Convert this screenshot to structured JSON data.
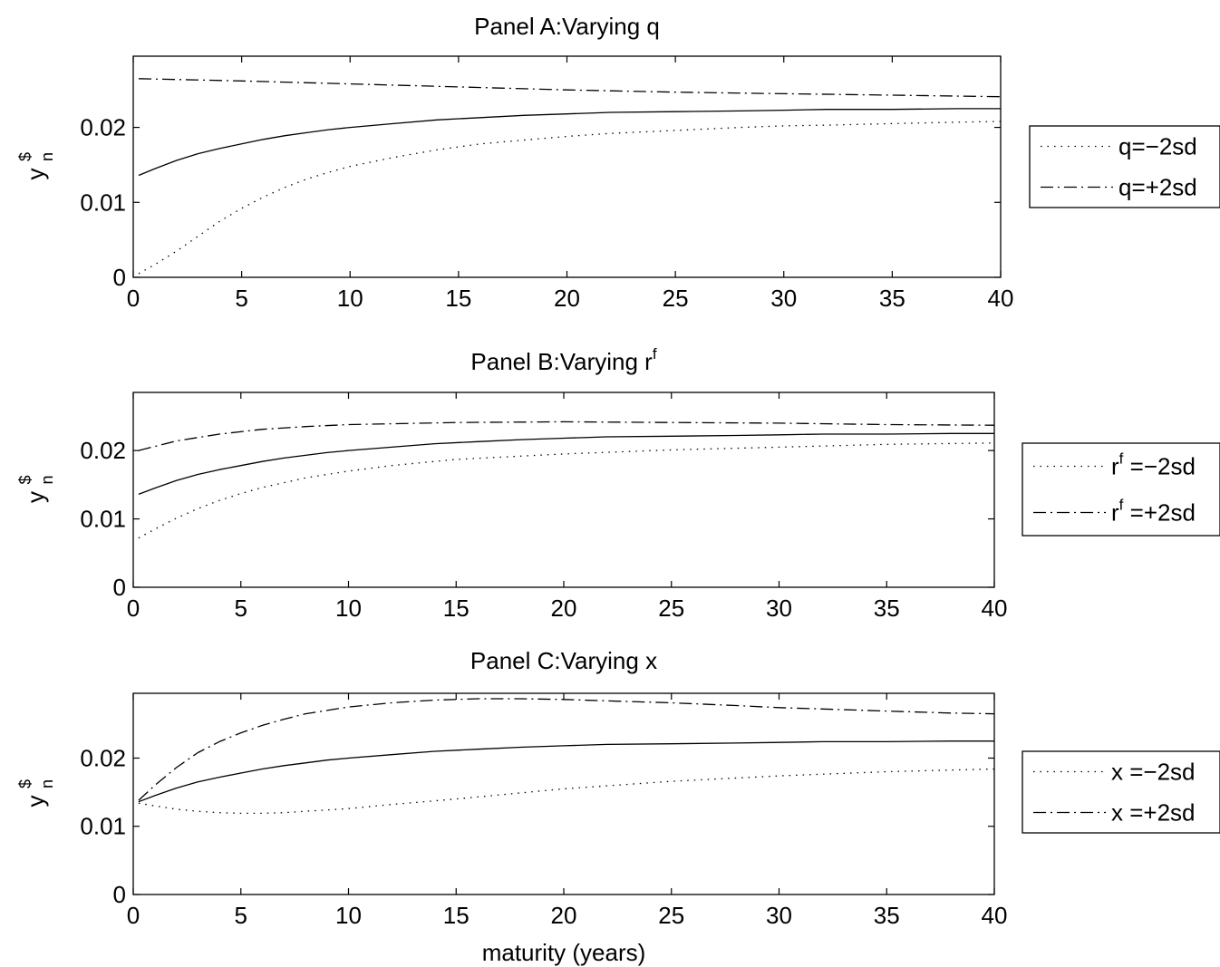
{
  "xlabel": "maturity (years)",
  "chart_data": [
    {
      "type": "line",
      "title": "Panel A:Varying q",
      "title_sup": "",
      "ylabel_base": "y",
      "ylabel_sup": "$",
      "ylabel_sub": "n",
      "xlim": [
        0,
        40
      ],
      "ylim": [
        0,
        0.0295
      ],
      "xticks": [
        "0",
        "5",
        "10",
        "15",
        "20",
        "25",
        "30",
        "35",
        "40"
      ],
      "yticks": [
        {
          "v": 0,
          "label": "0"
        },
        {
          "v": 0.01,
          "label": "0.01"
        },
        {
          "v": 0.02,
          "label": "0.02"
        }
      ],
      "series": [
        {
          "style": "solid",
          "x": [
            0.25,
            1,
            2,
            3,
            4,
            5,
            6,
            7,
            8,
            9,
            10,
            12,
            14,
            16,
            18,
            20,
            22,
            25,
            28,
            30,
            32,
            35,
            38,
            40
          ],
          "y": [
            0.0136,
            0.0145,
            0.0156,
            0.0165,
            0.0172,
            0.0178,
            0.0184,
            0.0189,
            0.0193,
            0.0197,
            0.02,
            0.0205,
            0.021,
            0.0213,
            0.0216,
            0.0218,
            0.022,
            0.0221,
            0.0222,
            0.0223,
            0.0224,
            0.0224,
            0.0225,
            0.0225
          ]
        },
        {
          "name": "q=−2sd",
          "style": "dotted",
          "x": [
            0.25,
            1,
            2,
            3,
            4,
            5,
            6,
            7,
            8,
            9,
            10,
            12,
            14,
            16,
            18,
            20,
            22,
            25,
            28,
            30,
            32,
            35,
            38,
            40
          ],
          "y": [
            0.0005,
            0.0017,
            0.0035,
            0.0055,
            0.0075,
            0.0092,
            0.0107,
            0.012,
            0.0131,
            0.014,
            0.0148,
            0.016,
            0.017,
            0.0178,
            0.0183,
            0.0188,
            0.0192,
            0.0196,
            0.02,
            0.0202,
            0.0203,
            0.0205,
            0.0207,
            0.0208
          ]
        },
        {
          "name": "q=+2sd",
          "style": "dashdot",
          "x": [
            0.25,
            5,
            10,
            15,
            20,
            25,
            30,
            35,
            40
          ],
          "y": [
            0.0265,
            0.0262,
            0.0258,
            0.0254,
            0.025,
            0.0247,
            0.0245,
            0.0243,
            0.0241
          ]
        }
      ]
    },
    {
      "type": "line",
      "title": "Panel B:Varying r",
      "title_sup": "f",
      "ylabel_base": "y",
      "ylabel_sup": "$",
      "ylabel_sub": "n",
      "xlim": [
        0,
        40
      ],
      "ylim": [
        0,
        0.0285
      ],
      "xticks": [
        "0",
        "5",
        "10",
        "15",
        "20",
        "25",
        "30",
        "35",
        "40"
      ],
      "yticks": [
        {
          "v": 0,
          "label": "0"
        },
        {
          "v": 0.01,
          "label": "0.01"
        },
        {
          "v": 0.02,
          "label": "0.02"
        }
      ],
      "series": [
        {
          "style": "solid",
          "x": [
            0.25,
            1,
            2,
            3,
            4,
            5,
            6,
            7,
            8,
            9,
            10,
            12,
            14,
            16,
            18,
            20,
            22,
            25,
            28,
            30,
            32,
            35,
            38,
            40
          ],
          "y": [
            0.0136,
            0.0145,
            0.0156,
            0.0165,
            0.0172,
            0.0178,
            0.0184,
            0.0189,
            0.0193,
            0.0197,
            0.02,
            0.0205,
            0.021,
            0.0213,
            0.0216,
            0.0218,
            0.022,
            0.0221,
            0.0222,
            0.0223,
            0.0224,
            0.0224,
            0.0225,
            0.0225
          ]
        },
        {
          "name": "r^f =−2sd",
          "legend_base": "r",
          "legend_sup": "f",
          "legend_rest": " =−2sd",
          "style": "dotted",
          "x": [
            0.25,
            1,
            2,
            3,
            4,
            5,
            6,
            7,
            8,
            10,
            12,
            15,
            20,
            25,
            30,
            35,
            40
          ],
          "y": [
            0.0072,
            0.0085,
            0.0101,
            0.0115,
            0.0127,
            0.0137,
            0.0146,
            0.0153,
            0.016,
            0.017,
            0.0178,
            0.0187,
            0.0195,
            0.0201,
            0.0205,
            0.0209,
            0.0211
          ]
        },
        {
          "name": "r^f =+2sd",
          "legend_base": "r",
          "legend_sup": "f",
          "legend_rest": " =+2sd",
          "style": "dashdot",
          "x": [
            0.25,
            2,
            4,
            6,
            8,
            10,
            15,
            20,
            25,
            30,
            35,
            40
          ],
          "y": [
            0.02,
            0.0214,
            0.0224,
            0.0231,
            0.0235,
            0.0238,
            0.0241,
            0.0242,
            0.0241,
            0.024,
            0.0238,
            0.0237
          ]
        }
      ]
    },
    {
      "type": "line",
      "title": "Panel C:Varying x",
      "title_sup": "",
      "ylabel_base": "y",
      "ylabel_sup": "$",
      "ylabel_sub": "n",
      "xlim": [
        0,
        40
      ],
      "ylim": [
        0,
        0.0295
      ],
      "xticks": [
        "0",
        "5",
        "10",
        "15",
        "20",
        "25",
        "30",
        "35",
        "40"
      ],
      "yticks": [
        {
          "v": 0,
          "label": "0"
        },
        {
          "v": 0.01,
          "label": "0.01"
        },
        {
          "v": 0.02,
          "label": "0.02"
        }
      ],
      "series": [
        {
          "style": "solid",
          "x": [
            0.25,
            1,
            2,
            3,
            4,
            5,
            6,
            7,
            8,
            9,
            10,
            12,
            14,
            16,
            18,
            20,
            22,
            25,
            28,
            30,
            32,
            35,
            38,
            40
          ],
          "y": [
            0.0136,
            0.0145,
            0.0156,
            0.0165,
            0.0172,
            0.0178,
            0.0184,
            0.0189,
            0.0193,
            0.0197,
            0.02,
            0.0205,
            0.021,
            0.0213,
            0.0216,
            0.0218,
            0.022,
            0.0221,
            0.0222,
            0.0223,
            0.0224,
            0.0224,
            0.0225,
            0.0225
          ]
        },
        {
          "name": "x =−2sd",
          "style": "dotted",
          "x": [
            0.25,
            1,
            2,
            3,
            4,
            5,
            6,
            7,
            8,
            10,
            12,
            15,
            20,
            25,
            30,
            35,
            40
          ],
          "y": [
            0.0134,
            0.013,
            0.0125,
            0.0122,
            0.012,
            0.0119,
            0.0119,
            0.012,
            0.0122,
            0.0126,
            0.0132,
            0.014,
            0.0155,
            0.0166,
            0.0174,
            0.018,
            0.0184
          ]
        },
        {
          "name": "x =+2sd",
          "style": "dashdot",
          "x": [
            0.25,
            1,
            2,
            3,
            4,
            5,
            6,
            7,
            8,
            10,
            12,
            14,
            16,
            18,
            20,
            22,
            25,
            28,
            30,
            32,
            35,
            38,
            40
          ],
          "y": [
            0.0138,
            0.016,
            0.0186,
            0.0208,
            0.0224,
            0.0237,
            0.0248,
            0.0257,
            0.0265,
            0.0275,
            0.0281,
            0.0285,
            0.0287,
            0.0287,
            0.0286,
            0.0284,
            0.0281,
            0.0277,
            0.0274,
            0.0272,
            0.0269,
            0.0266,
            0.0265
          ]
        }
      ]
    }
  ]
}
